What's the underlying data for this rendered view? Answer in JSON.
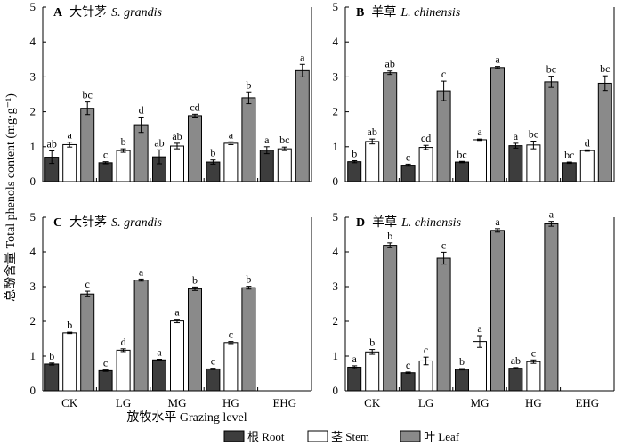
{
  "chart_data": {
    "type": "bar",
    "ylabel": "总酚含量 Total phenols content (mg·g⁻¹)",
    "xlabel": "放牧水平 Grazing level",
    "categories": [
      "CK",
      "LG",
      "MG",
      "HG",
      "EHG"
    ],
    "ylim": [
      0,
      5
    ],
    "yticks": [
      0,
      1,
      2,
      3,
      4,
      5
    ],
    "legend": {
      "placement": "bottom",
      "entries": [
        {
          "label": "根 Root",
          "color": "#3d3d3d"
        },
        {
          "label": "茎 Stem",
          "color": "#ffffff"
        },
        {
          "label": "叶 Leaf",
          "color": "#8a8a8a"
        }
      ]
    },
    "panels": [
      {
        "letter": "A",
        "cn": "大针茅",
        "species": "S. grandis",
        "series": [
          {
            "values": [
              0.7,
              0.54,
              0.71,
              0.56,
              0.9
            ],
            "errors": [
              0.18,
              0.03,
              0.2,
              0.06,
              0.1
            ],
            "sig": [
              "ab",
              "c",
              "ab",
              "b",
              "a"
            ]
          },
          {
            "values": [
              1.06,
              0.89,
              1.02,
              1.1,
              0.94
            ],
            "errors": [
              0.07,
              0.05,
              0.08,
              0.04,
              0.05
            ],
            "sig": [
              "a",
              "b",
              "ab",
              "a",
              "bc"
            ]
          },
          {
            "values": [
              2.1,
              1.63,
              1.89,
              2.4,
              3.18
            ],
            "errors": [
              0.18,
              0.22,
              0.04,
              0.17,
              0.18
            ],
            "sig": [
              "bc",
              "d",
              "cd",
              "b",
              "a"
            ]
          }
        ]
      },
      {
        "letter": "B",
        "cn": "羊草",
        "species": "L. chinensis",
        "series": [
          {
            "values": [
              0.57,
              0.47,
              0.56,
              1.03,
              0.54
            ],
            "errors": [
              0.03,
              0.03,
              0.02,
              0.07,
              0.02
            ],
            "sig": [
              "b",
              "c",
              "bc",
              "a",
              "bc"
            ]
          },
          {
            "values": [
              1.15,
              0.98,
              1.2,
              1.05,
              0.89
            ],
            "errors": [
              0.07,
              0.06,
              0.02,
              0.11,
              0.02
            ],
            "sig": [
              "ab",
              "cd",
              "a",
              "bc",
              "d"
            ]
          },
          {
            "values": [
              3.12,
              2.6,
              3.27,
              2.86,
              2.82
            ],
            "errors": [
              0.05,
              0.28,
              0.03,
              0.16,
              0.21
            ],
            "sig": [
              "ab",
              "c",
              "a",
              "bc",
              "bc"
            ]
          }
        ]
      },
      {
        "letter": "C",
        "cn": "大针茅",
        "species": "S. grandis",
        "series": [
          {
            "values": [
              0.77,
              0.58,
              0.89,
              0.63,
              null
            ],
            "errors": [
              0.03,
              0.02,
              0.02,
              0.02,
              null
            ],
            "sig": [
              "b",
              "c",
              "a",
              "c",
              ""
            ]
          },
          {
            "values": [
              1.67,
              1.17,
              2.01,
              1.39,
              null
            ],
            "errors": [
              0.02,
              0.04,
              0.05,
              0.03,
              null
            ],
            "sig": [
              "b",
              "d",
              "a",
              "c",
              ""
            ]
          },
          {
            "values": [
              2.79,
              3.19,
              2.94,
              2.97,
              null
            ],
            "errors": [
              0.08,
              0.03,
              0.05,
              0.04,
              null
            ],
            "sig": [
              "c",
              "a",
              "b",
              "b",
              ""
            ]
          }
        ]
      },
      {
        "letter": "D",
        "cn": "羊草",
        "species": "L. chinensis",
        "series": [
          {
            "values": [
              0.68,
              0.52,
              0.62,
              0.65,
              null
            ],
            "errors": [
              0.04,
              0.02,
              0.02,
              0.02,
              null
            ],
            "sig": [
              "a",
              "c",
              "b",
              "ab",
              ""
            ]
          },
          {
            "values": [
              1.12,
              0.86,
              1.42,
              0.84,
              null
            ],
            "errors": [
              0.07,
              0.11,
              0.17,
              0.05,
              null
            ],
            "sig": [
              "b",
              "c",
              "a",
              "c",
              ""
            ]
          },
          {
            "values": [
              4.19,
              3.82,
              4.62,
              4.81,
              null
            ],
            "errors": [
              0.07,
              0.17,
              0.05,
              0.07,
              null
            ],
            "sig": [
              "b",
              "c",
              "a",
              "a",
              ""
            ]
          }
        ]
      }
    ]
  }
}
